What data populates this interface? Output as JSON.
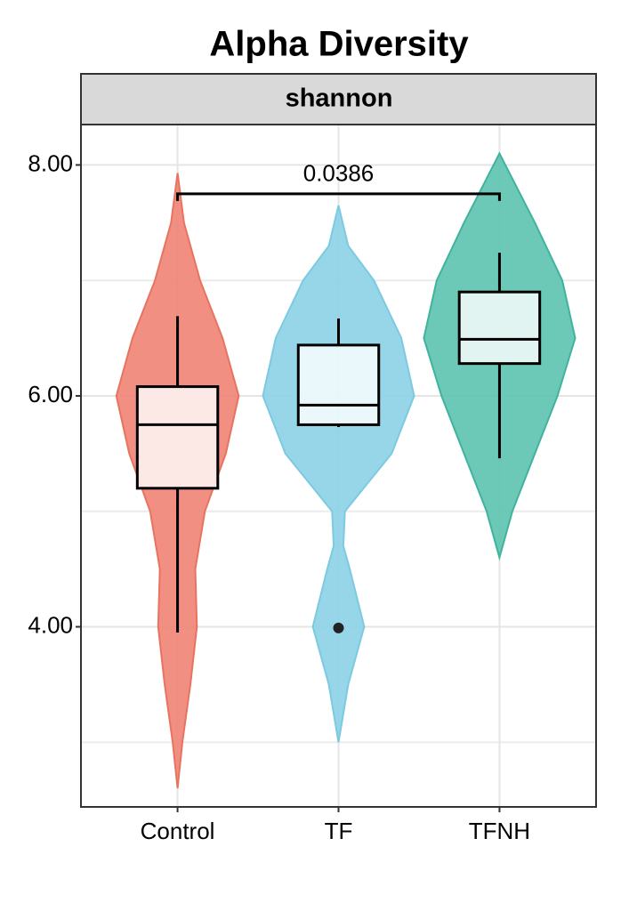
{
  "chart_data": {
    "type": "violin",
    "title": "Alpha Diversity",
    "facet_label": "shannon",
    "ylim": [
      2.44,
      8.35
    ],
    "yticks": [
      {
        "value": 4,
        "label": "4.00"
      },
      {
        "value": 6,
        "label": "6.00"
      },
      {
        "value": 8,
        "label": "8.00"
      }
    ],
    "minor_yticks": [
      3,
      5,
      7
    ],
    "grid": true,
    "series": [
      {
        "name": "Control",
        "color": "#ef8677",
        "line_color": "#e8735f",
        "box": {
          "whisker_low": 3.95,
          "q1": 5.2,
          "median": 5.75,
          "q3": 6.08,
          "whisker_high": 6.69
        },
        "outliers": [],
        "violin_y": [
          7.93,
          7.5,
          7.0,
          6.5,
          6.0,
          5.5,
          5.0,
          4.5,
          4.0,
          3.5,
          3.0,
          2.6
        ],
        "violin_halfwidth": [
          0,
          0.04,
          0.14,
          0.28,
          0.38,
          0.3,
          0.17,
          0.11,
          0.12,
          0.08,
          0.03,
          0
        ]
      },
      {
        "name": "TF",
        "color": "#8dd3e6",
        "line_color": "#7ccae2",
        "box": {
          "whisker_low": 5.73,
          "q1": 5.75,
          "median": 5.92,
          "q3": 6.44,
          "whisker_high": 6.67
        },
        "outliers": [
          3.99
        ],
        "violin_y": [
          7.65,
          7.3,
          7.0,
          6.5,
          6.0,
          5.5,
          5.0,
          4.7,
          4.5,
          4.0,
          3.5,
          3.0
        ],
        "violin_halfwidth": [
          0,
          0.06,
          0.22,
          0.39,
          0.47,
          0.33,
          0.04,
          0.03,
          0.07,
          0.16,
          0.06,
          0
        ]
      },
      {
        "name": "TFNH",
        "color": "#5fc4b1",
        "line_color": "#3fb39c",
        "box": {
          "whisker_low": 5.46,
          "q1": 6.28,
          "median": 6.49,
          "q3": 6.9,
          "whisker_high": 7.24
        },
        "outliers": [],
        "violin_y": [
          8.1,
          7.5,
          7.0,
          6.5,
          6.0,
          5.5,
          5.0,
          4.6
        ],
        "violin_halfwidth": [
          0,
          0.22,
          0.39,
          0.47,
          0.36,
          0.22,
          0.08,
          0
        ]
      }
    ],
    "annotations": [
      {
        "label": "0.0386",
        "from": "Control",
        "to": "TFNH",
        "y": 7.75
      }
    ]
  }
}
